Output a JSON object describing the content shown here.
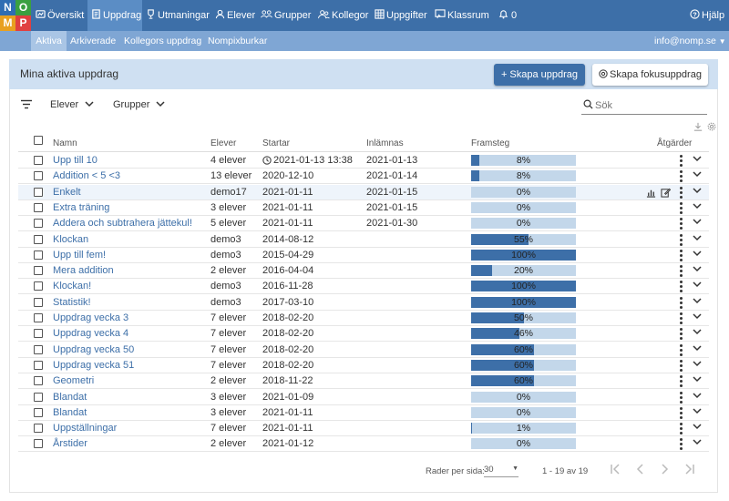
{
  "logo": {
    "letters": [
      "N",
      "O",
      "M",
      "P"
    ],
    "colors": [
      "#2f6db3",
      "#3aa040",
      "#e8a020",
      "#e04040"
    ]
  },
  "nav": {
    "items": [
      {
        "label": "Översikt",
        "icon": "dashboard-icon"
      },
      {
        "label": "Uppdrag",
        "icon": "document-icon",
        "active": true
      },
      {
        "label": "Utmaningar",
        "icon": "trophy-icon"
      },
      {
        "label": "Elever",
        "icon": "person-icon"
      },
      {
        "label": "Grupper",
        "icon": "group-icon"
      },
      {
        "label": "Kollegor",
        "icon": "people-icon"
      },
      {
        "label": "Uppgifter",
        "icon": "grid-icon"
      },
      {
        "label": "Klassrum",
        "icon": "classroom-icon"
      },
      {
        "label": "0",
        "icon": "bell-icon"
      }
    ],
    "help": "Hjälp"
  },
  "subnav": {
    "items": [
      "Aktiva",
      "Arkiverade",
      "Kollegors uppdrag",
      "Nompixburkar"
    ],
    "active": "Aktiva",
    "user": "info@nomp.se"
  },
  "card": {
    "title": "Mina aktiva uppdrag",
    "new_button": "+ Skapa uppdrag",
    "focus_button": "Skapa fokusuppdrag"
  },
  "filters": {
    "students": "Elever",
    "groups": "Grupper",
    "search_placeholder": "Sök"
  },
  "table": {
    "headers": {
      "name": "Namn",
      "students": "Elever",
      "starts": "Startar",
      "due": "Inlämnas",
      "progress": "Framsteg",
      "actions": "Åtgärder"
    },
    "rows": [
      {
        "name": "Upp till 10",
        "students": "4 elever",
        "starts": "2021-01-13 13:38",
        "scheduled": true,
        "due": "2021-01-13",
        "progress": 8
      },
      {
        "name": "Addition < 5 <3",
        "students": "13 elever",
        "starts": "2020-12-10",
        "due": "2021-01-14",
        "progress": 8
      },
      {
        "name": "Enkelt",
        "students": "demo17",
        "starts": "2021-01-11",
        "due": "2021-01-15",
        "progress": 0,
        "highlight": true
      },
      {
        "name": "Extra träning",
        "students": "3 elever",
        "starts": "2021-01-11",
        "due": "2021-01-15",
        "progress": 0
      },
      {
        "name": "Addera och subtrahera jättekul!",
        "students": "5 elever",
        "starts": "2021-01-11",
        "due": "2021-01-30",
        "progress": 0
      },
      {
        "name": "Klockan",
        "students": "demo3",
        "starts": "2014-08-12",
        "due": "",
        "progress": 55
      },
      {
        "name": "Upp till fem!",
        "students": "demo3",
        "starts": "2015-04-29",
        "due": "",
        "progress": 100
      },
      {
        "name": "Mera addition",
        "students": "2 elever",
        "starts": "2016-04-04",
        "due": "",
        "progress": 20
      },
      {
        "name": "Klockan!",
        "students": "demo3",
        "starts": "2016-11-28",
        "due": "",
        "progress": 100
      },
      {
        "name": "Statistik!",
        "students": "demo3",
        "starts": "2017-03-10",
        "due": "",
        "progress": 100
      },
      {
        "name": "Uppdrag vecka 3",
        "students": "7 elever",
        "starts": "2018-02-20",
        "due": "",
        "progress": 50
      },
      {
        "name": "Uppdrag vecka 4",
        "students": "7 elever",
        "starts": "2018-02-20",
        "due": "",
        "progress": 46
      },
      {
        "name": "Uppdrag vecka 50",
        "students": "7 elever",
        "starts": "2018-02-20",
        "due": "",
        "progress": 60
      },
      {
        "name": "Uppdrag vecka 51",
        "students": "7 elever",
        "starts": "2018-02-20",
        "due": "",
        "progress": 60
      },
      {
        "name": "Geometri",
        "students": "2 elever",
        "starts": "2018-11-22",
        "due": "",
        "progress": 60
      },
      {
        "name": "Blandat",
        "students": "3 elever",
        "starts": "2021-01-09",
        "due": "",
        "progress": 0
      },
      {
        "name": "Blandat",
        "students": "3 elever",
        "starts": "2021-01-11",
        "due": "",
        "progress": 0
      },
      {
        "name": "Uppställningar",
        "students": "7 elever",
        "starts": "2021-01-11",
        "due": "",
        "progress": 1
      },
      {
        "name": "Årstider",
        "students": "2 elever",
        "starts": "2021-01-12",
        "due": "",
        "progress": 0
      }
    ]
  },
  "footer": {
    "rows_per_page_label": "Rader per sida:",
    "rows_per_page": "30",
    "range": "1 - 19 av 19"
  },
  "colors": {
    "primary": "#3d6fa8",
    "subnav": "#7fa6d4",
    "header_bg": "#cfe0f2",
    "bar_bg": "#c3d7ea"
  }
}
